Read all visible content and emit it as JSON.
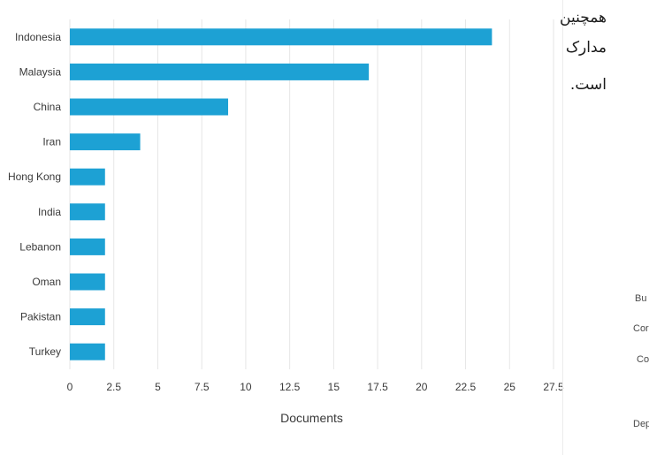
{
  "chart_data": {
    "type": "bar",
    "orientation": "horizontal",
    "categories": [
      "Indonesia",
      "Malaysia",
      "China",
      "Iran",
      "Hong Kong",
      "India",
      "Lebanon",
      "Oman",
      "Pakistan",
      "Turkey"
    ],
    "values": [
      24,
      17,
      9,
      4,
      2,
      2,
      2,
      2,
      2,
      2
    ],
    "xlabel": "Documents",
    "ylabel": "",
    "xlim": [
      0,
      27.5
    ],
    "xticks": [
      "0",
      "2.5",
      "5",
      "7.5",
      "10",
      "12.5",
      "15",
      "17.5",
      "20",
      "22.5",
      "25",
      "27.5"
    ],
    "grid": "vertical",
    "bar_color": "#1da1d4"
  },
  "side_text": {
    "line1": "همچنین",
    "line2": "مدارک",
    "line3": "است."
  },
  "right_fragments": [
    "Bu",
    "Cor",
    "Co",
    "Dep"
  ]
}
